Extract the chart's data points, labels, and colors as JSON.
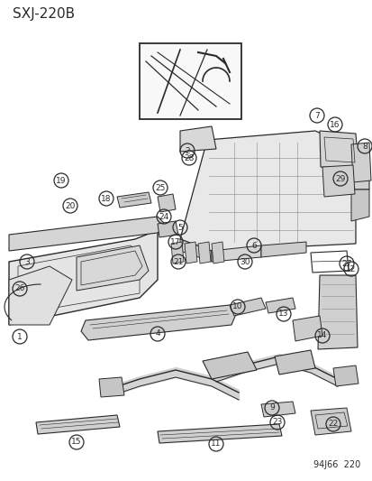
{
  "title": "SXJ-220B",
  "footer": "94J66  220",
  "bg": "#ffffff",
  "lc": "#2a2a2a",
  "fig_w": 4.14,
  "fig_h": 5.33,
  "dpi": 100
}
